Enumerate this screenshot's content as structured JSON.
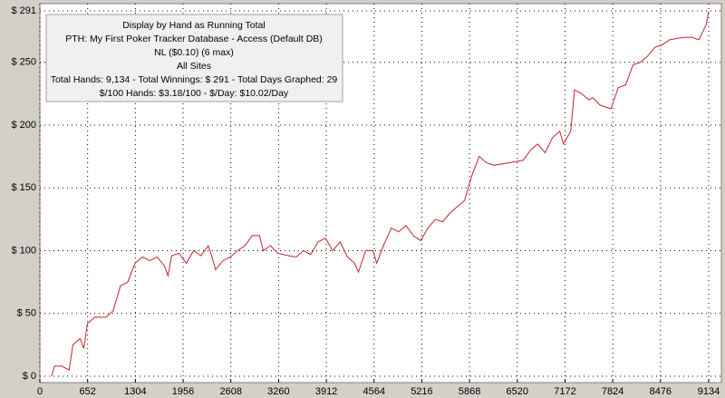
{
  "chart_data": {
    "type": "line",
    "annotations": [
      "Display by Hand as Running Total",
      "PTH: My First Poker Tracker Database - Access (Default DB)",
      "NL ($0.10) (6 max)",
      "All Sites",
      "Total Hands: 9,134 - Total Winnings: $ 291 - Total Days Graphed: 29",
      "$/100 Hands: $3.18/100 - $/Day: $10.02/Day"
    ],
    "x": [
      160,
      200,
      300,
      400,
      450,
      550,
      600,
      650,
      750,
      900,
      1000,
      1100,
      1200,
      1300,
      1400,
      1500,
      1600,
      1700,
      1750,
      1800,
      1900,
      2000,
      2100,
      2200,
      2300,
      2350,
      2400,
      2500,
      2600,
      2700,
      2800,
      2900,
      3000,
      3050,
      3150,
      3250,
      3400,
      3500,
      3600,
      3700,
      3800,
      3900,
      4000,
      4100,
      4200,
      4300,
      4350,
      4450,
      4550,
      4600,
      4700,
      4800,
      4900,
      5000,
      5100,
      5200,
      5300,
      5400,
      5500,
      5600,
      5700,
      5800,
      5900,
      6000,
      6100,
      6200,
      6400,
      6600,
      6700,
      6800,
      6900,
      7000,
      7100,
      7150,
      7250,
      7300,
      7400,
      7500,
      7550,
      7650,
      7800,
      7900,
      8000,
      8100,
      8200,
      8300,
      8400,
      8500,
      8600,
      8700,
      8800,
      8900,
      9000,
      9100,
      9134
    ],
    "series": [
      {
        "color": "#c0262b",
        "values": [
          0,
          8,
          8,
          5,
          25,
          30,
          22,
          42,
          47,
          47,
          52,
          72,
          75,
          90,
          95,
          92,
          95,
          88,
          80,
          96,
          98,
          90,
          100,
          96,
          104,
          95,
          85,
          92,
          95,
          100,
          104,
          112,
          112,
          100,
          104,
          98,
          96,
          95,
          100,
          97,
          107,
          110,
          100,
          107,
          95,
          90,
          83,
          100,
          100,
          90,
          105,
          118,
          115,
          120,
          112,
          108,
          118,
          125,
          123,
          130,
          135,
          140,
          160,
          175,
          170,
          168,
          170,
          172,
          180,
          185,
          178,
          190,
          195,
          185,
          195,
          228,
          225,
          220,
          222,
          216,
          213,
          230,
          232,
          248,
          250,
          255,
          262,
          264,
          268,
          269,
          270,
          270,
          268,
          280,
          291
        ]
      }
    ],
    "xlim": [
      0,
      9134
    ],
    "xticks": [
      0,
      652,
      1304,
      1956,
      2608,
      3260,
      3912,
      4564,
      5216,
      5868,
      6520,
      7172,
      7824,
      8476,
      9134
    ],
    "ylim": [
      0,
      291
    ],
    "yticks": [
      {
        "value": 0,
        "label": "$ 0"
      },
      {
        "value": 50,
        "label": "$ 50"
      },
      {
        "value": 100,
        "label": "$ 100"
      },
      {
        "value": 150,
        "label": "$ 150"
      },
      {
        "value": 200,
        "label": "$ 200"
      },
      {
        "value": 250,
        "label": "$ 250"
      },
      {
        "value": 291,
        "label": "$ 291"
      }
    ],
    "grid": true
  }
}
